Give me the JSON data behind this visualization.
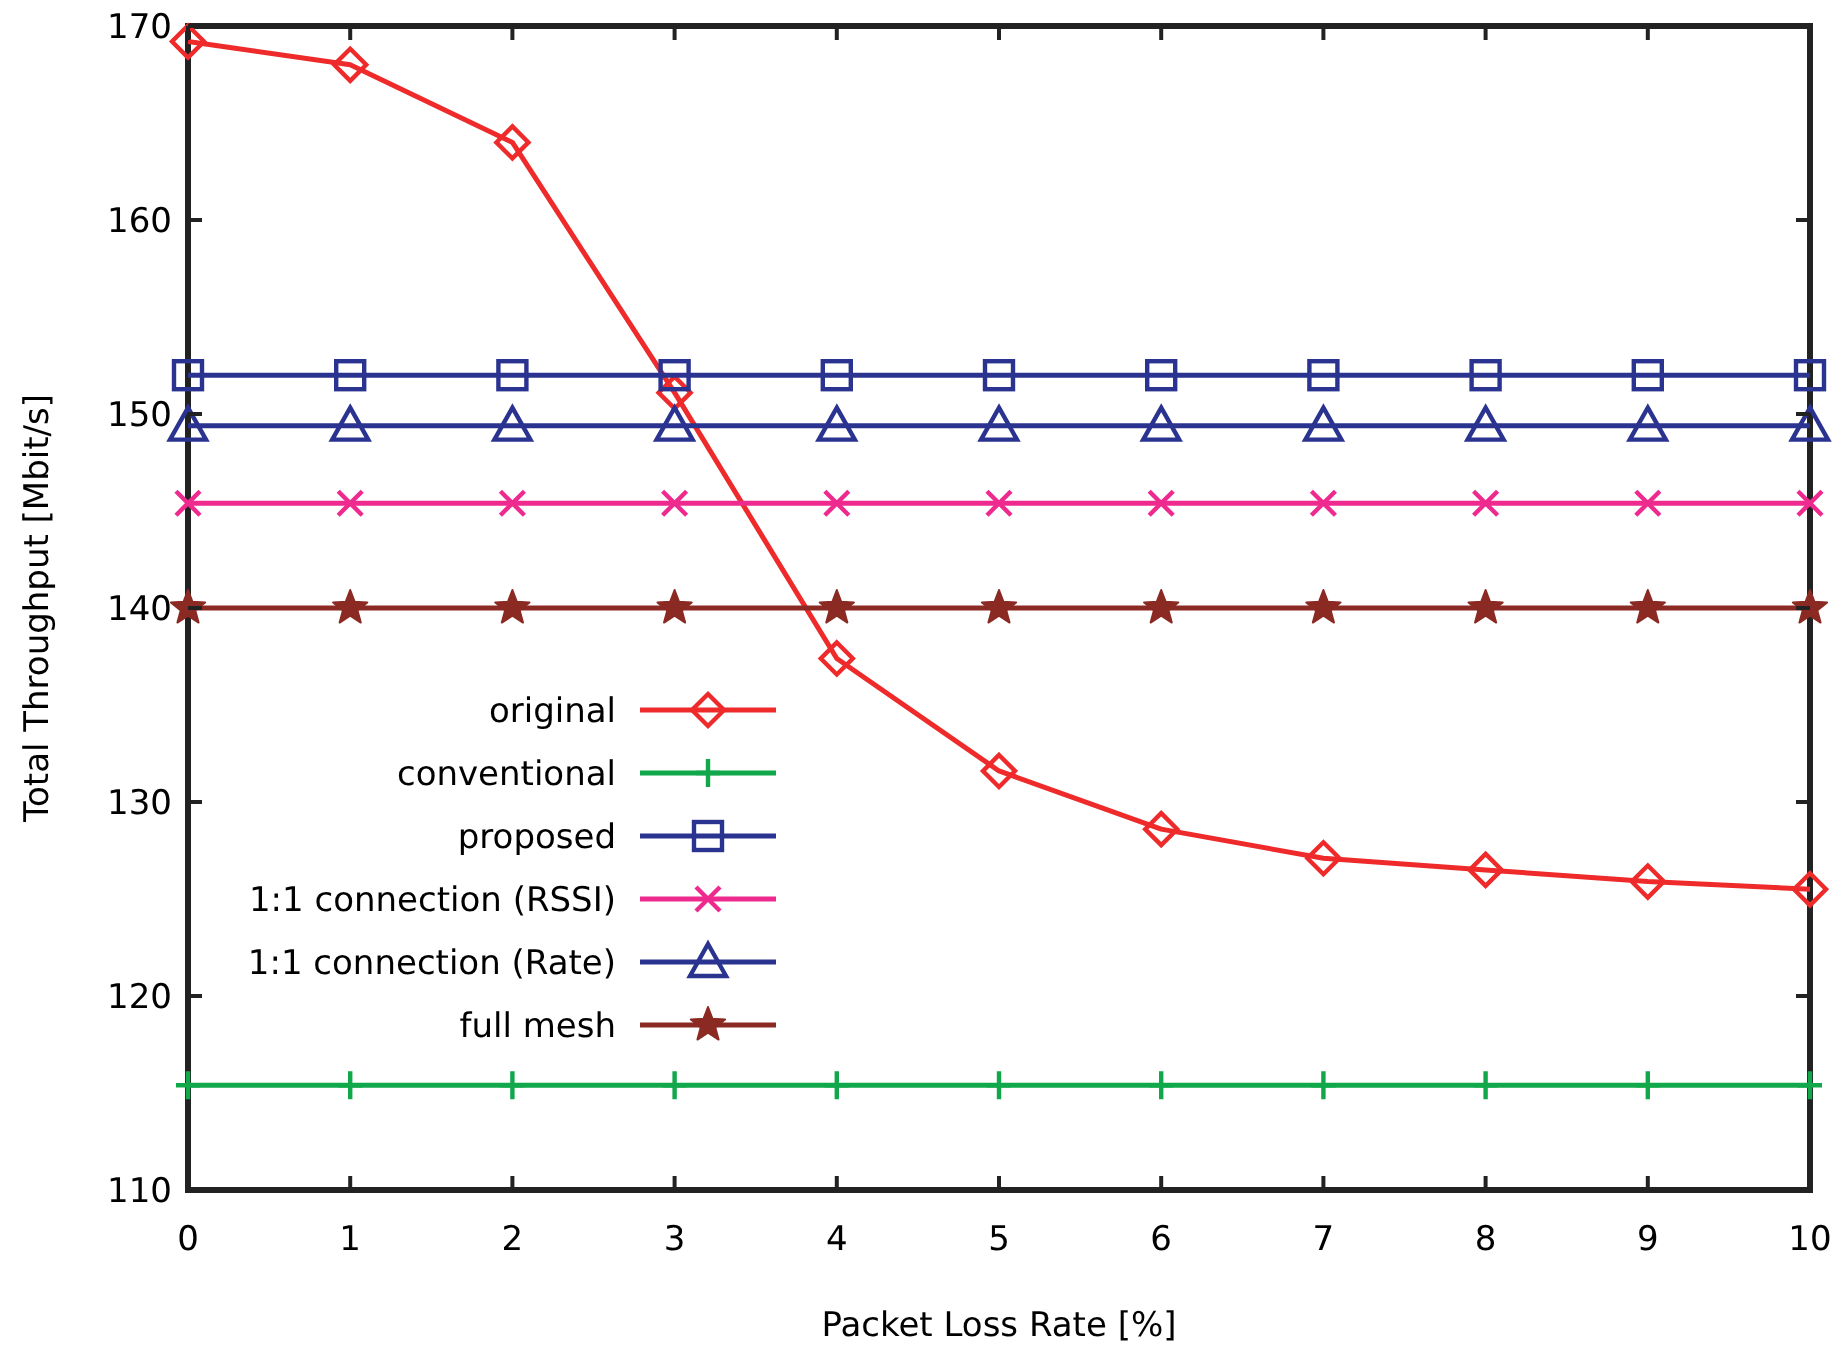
{
  "chart_data": {
    "type": "line",
    "xlabel": "Packet Loss Rate [%]",
    "ylabel": "Total Throughput [Mbit/s]",
    "x": [
      0,
      1,
      2,
      3,
      4,
      5,
      6,
      7,
      8,
      9,
      10
    ],
    "xlim": [
      0,
      10
    ],
    "xticks": [
      0,
      1,
      2,
      3,
      4,
      5,
      6,
      7,
      8,
      9,
      10
    ],
    "ylim": [
      110,
      170
    ],
    "yticks": [
      110,
      120,
      130,
      140,
      150,
      160,
      170
    ],
    "grid": false,
    "legend": "left",
    "line_style": "solid",
    "series": [
      {
        "name": "original",
        "color": "#ee2a2a",
        "marker": "diamond",
        "values": [
          169.2,
          168.0,
          164.0,
          151.1,
          137.4,
          131.6,
          128.6,
          127.1,
          126.5,
          125.9,
          125.5
        ]
      },
      {
        "name": "conventional",
        "color": "#10a84a",
        "marker": "plus",
        "values": [
          115.4,
          115.4,
          115.4,
          115.4,
          115.4,
          115.4,
          115.4,
          115.4,
          115.4,
          115.4,
          115.4
        ]
      },
      {
        "name": "proposed",
        "color": "#2b3390",
        "marker": "square",
        "values": [
          152.0,
          152.0,
          152.0,
          152.0,
          152.0,
          152.0,
          152.0,
          152.0,
          152.0,
          152.0,
          152.0
        ]
      },
      {
        "name": "1:1 connection (RSSI)",
        "color": "#ee2a8f",
        "marker": "cross",
        "values": [
          145.4,
          145.4,
          145.4,
          145.4,
          145.4,
          145.4,
          145.4,
          145.4,
          145.4,
          145.4,
          145.4
        ]
      },
      {
        "name": "1:1 connection (Rate)",
        "color": "#2b3390",
        "marker": "triangle",
        "values": [
          149.4,
          149.4,
          149.4,
          149.4,
          149.4,
          149.4,
          149.4,
          149.4,
          149.4,
          149.4,
          149.4
        ]
      },
      {
        "name": "full mesh",
        "color": "#8b2a23",
        "marker": "star",
        "values": [
          140.0,
          140.0,
          140.0,
          140.0,
          140.0,
          140.0,
          140.0,
          140.0,
          140.0,
          140.0,
          140.0
        ]
      }
    ]
  }
}
